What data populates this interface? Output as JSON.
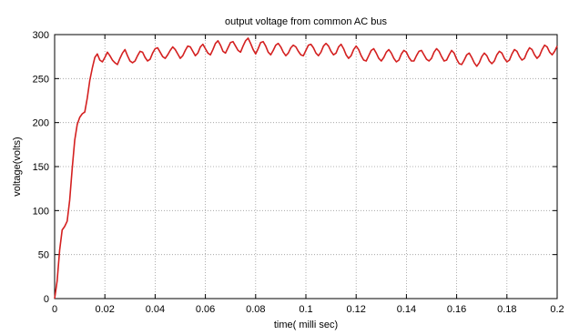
{
  "chart_data": {
    "type": "line",
    "title": "output voltage from common AC bus",
    "xlabel": "time( milli sec)",
    "ylabel": "voltage(volts)",
    "xlim": [
      0,
      0.2
    ],
    "ylim": [
      0,
      300
    ],
    "xticks": [
      0,
      0.02,
      0.04,
      0.06,
      0.08,
      0.1,
      0.12,
      0.14,
      0.16,
      0.18,
      0.2
    ],
    "xtick_labels": [
      "0",
      "0.02",
      "0.04",
      "0.06",
      "0.08",
      "0.1",
      "0.12",
      "0.14",
      "0.16",
      "0.18",
      "0.2"
    ],
    "yticks": [
      0,
      50,
      100,
      150,
      200,
      250,
      300
    ],
    "ytick_labels": [
      "0",
      "50",
      "100",
      "150",
      "200",
      "250",
      "300"
    ],
    "grid": true,
    "series": [
      {
        "color": "#d42020",
        "x": [
          0,
          0.001,
          0.002,
          0.003,
          0.004,
          0.005,
          0.006,
          0.007,
          0.008,
          0.009,
          0.01,
          0.011,
          0.012,
          0.013,
          0.014,
          0.015,
          0.016,
          0.017,
          0.018,
          0.019,
          0.02,
          0.021,
          0.022,
          0.023,
          0.024,
          0.025,
          0.026,
          0.027,
          0.028,
          0.029,
          0.03,
          0.031,
          0.032,
          0.033,
          0.034,
          0.035,
          0.036,
          0.037,
          0.038,
          0.039,
          0.04,
          0.041,
          0.042,
          0.043,
          0.044,
          0.045,
          0.046,
          0.047,
          0.048,
          0.049,
          0.05,
          0.051,
          0.052,
          0.053,
          0.054,
          0.055,
          0.056,
          0.057,
          0.058,
          0.059,
          0.06,
          0.061,
          0.062,
          0.063,
          0.064,
          0.065,
          0.066,
          0.067,
          0.068,
          0.069,
          0.07,
          0.071,
          0.072,
          0.073,
          0.074,
          0.075,
          0.076,
          0.077,
          0.078,
          0.079,
          0.08,
          0.081,
          0.082,
          0.083,
          0.084,
          0.085,
          0.086,
          0.087,
          0.088,
          0.089,
          0.09,
          0.091,
          0.092,
          0.093,
          0.094,
          0.095,
          0.096,
          0.097,
          0.098,
          0.099,
          0.1,
          0.101,
          0.102,
          0.103,
          0.104,
          0.105,
          0.106,
          0.107,
          0.108,
          0.109,
          0.11,
          0.111,
          0.112,
          0.113,
          0.114,
          0.115,
          0.116,
          0.117,
          0.118,
          0.119,
          0.12,
          0.121,
          0.122,
          0.123,
          0.124,
          0.125,
          0.126,
          0.127,
          0.128,
          0.129,
          0.13,
          0.131,
          0.132,
          0.133,
          0.134,
          0.135,
          0.136,
          0.137,
          0.138,
          0.139,
          0.14,
          0.141,
          0.142,
          0.143,
          0.144,
          0.145,
          0.146,
          0.147,
          0.148,
          0.149,
          0.15,
          0.151,
          0.152,
          0.153,
          0.154,
          0.155,
          0.156,
          0.157,
          0.158,
          0.159,
          0.16,
          0.161,
          0.162,
          0.163,
          0.164,
          0.165,
          0.166,
          0.167,
          0.168,
          0.169,
          0.17,
          0.171,
          0.172,
          0.173,
          0.174,
          0.175,
          0.176,
          0.177,
          0.178,
          0.179,
          0.18,
          0.181,
          0.182,
          0.183,
          0.184,
          0.185,
          0.186,
          0.187,
          0.188,
          0.189,
          0.19,
          0.191,
          0.192,
          0.193,
          0.194,
          0.195,
          0.196,
          0.197,
          0.198,
          0.199,
          0.2
        ],
        "y": [
          0,
          20,
          55,
          78,
          82,
          88,
          112,
          148,
          180,
          198,
          206,
          210,
          212,
          228,
          248,
          262,
          274,
          278,
          271,
          269,
          274,
          280,
          276,
          271,
          268,
          266,
          273,
          279,
          283,
          276,
          270,
          268,
          270,
          276,
          281,
          280,
          274,
          270,
          272,
          279,
          284,
          285,
          280,
          275,
          273,
          277,
          282,
          286,
          283,
          278,
          273,
          276,
          282,
          287,
          286,
          281,
          276,
          279,
          286,
          289,
          284,
          279,
          277,
          283,
          290,
          293,
          288,
          281,
          279,
          285,
          291,
          292,
          287,
          282,
          280,
          287,
          293,
          296,
          290,
          283,
          278,
          284,
          291,
          292,
          287,
          280,
          277,
          282,
          288,
          290,
          286,
          280,
          276,
          279,
          285,
          288,
          286,
          281,
          277,
          276,
          282,
          288,
          289,
          285,
          279,
          276,
          280,
          287,
          290,
          287,
          281,
          277,
          279,
          286,
          289,
          284,
          277,
          273,
          276,
          283,
          287,
          283,
          276,
          271,
          270,
          276,
          282,
          284,
          279,
          273,
          270,
          274,
          280,
          283,
          279,
          273,
          269,
          271,
          278,
          282,
          280,
          274,
          270,
          270,
          276,
          281,
          282,
          277,
          272,
          270,
          273,
          280,
          284,
          281,
          275,
          270,
          271,
          277,
          282,
          279,
          272,
          267,
          266,
          271,
          277,
          279,
          274,
          268,
          264,
          268,
          275,
          279,
          276,
          270,
          267,
          270,
          277,
          281,
          279,
          273,
          269,
          271,
          278,
          283,
          281,
          275,
          271,
          273,
          280,
          285,
          283,
          277,
          273,
          276,
          283,
          288,
          286,
          280,
          277,
          281,
          287
        ]
      }
    ]
  }
}
